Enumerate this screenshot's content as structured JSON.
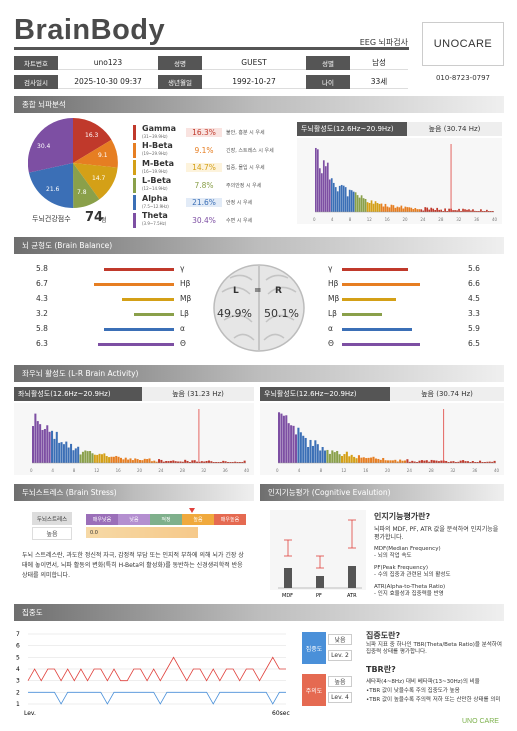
{
  "brand": "BrainBody",
  "report_label": "EEG 뇌파검사",
  "logo": "UNOCARE",
  "phone": "010-8723-0797",
  "info": {
    "row1": [
      {
        "k": "차트번호",
        "v": "uno123"
      },
      {
        "k": "성명",
        "v": "GUEST"
      },
      {
        "k": "성별",
        "v": "남성"
      }
    ],
    "row2": [
      {
        "k": "검사일시",
        "v": "2025-10-30 09:37"
      },
      {
        "k": "생년월일",
        "v": "1992-10-27"
      },
      {
        "k": "나이",
        "v": "33세"
      }
    ]
  },
  "sections": {
    "s1": "종합 뇌파분석",
    "s2": "뇌 균형도 (Brain Balance)",
    "s3": "좌우뇌 활성도 (L-R Brain Activity)",
    "s4": "두뇌스트레스 (Brain Stress)",
    "s5": "인지기능평가 (Cognitive Evalution)",
    "s6": "집중도"
  },
  "health": {
    "label": "두뇌건강점수",
    "score": "74",
    "unit": "점"
  },
  "pie_labels": [
    "16.3",
    "9.1",
    "14.7",
    "7.8",
    "21.6",
    "30.4"
  ],
  "bands": [
    {
      "name": "Gamma",
      "sub": "(31~39.9Hz)",
      "pct": "16.3%",
      "desc": "불안, 흥분 시 우세",
      "color": "#c0392b",
      "bg": "#f9e3e0"
    },
    {
      "name": "H-Beta",
      "sub": "(19~29.9Hz)",
      "pct": "9.1%",
      "desc": "긴장, 스트레스 시 우세",
      "color": "#e67e22",
      "bg": "#fff"
    },
    {
      "name": "M-Beta",
      "sub": "(16~19.9Hz)",
      "pct": "14.7%",
      "desc": "집중, 몰입 시 우세",
      "color": "#d4a017",
      "bg": "#fdf3dc"
    },
    {
      "name": "L-Beta",
      "sub": "(12~14.9Hz)",
      "pct": "7.8%",
      "desc": "주의안정 시 우세",
      "color": "#8aa04a",
      "bg": "#fff"
    },
    {
      "name": "Alpha",
      "sub": "(7.5~12.9Hz)",
      "pct": "21.6%",
      "desc": "안정 시 우세",
      "color": "#3b6fb6",
      "bg": "#e2ebf7"
    },
    {
      "name": "Theta",
      "sub": "(3.9~7.5Hz)",
      "pct": "30.4%",
      "desc": "수면 시 우세",
      "color": "#7d4fa3",
      "bg": "#fff"
    }
  ],
  "dominant_top": {
    "title": "두뇌활성도(12.6Hz~20.9Hz)",
    "value": "높음 (30.74 Hz)"
  },
  "balance": {
    "left_values": [
      "5.8",
      "6.7",
      "4.3",
      "3.2",
      "5.8",
      "6.3"
    ],
    "right_values": [
      "5.6",
      "6.6",
      "4.5",
      "3.3",
      "5.9",
      "6.5"
    ],
    "symbols": [
      "γ",
      "Hβ",
      "Mβ",
      "Lβ",
      "α",
      "Θ"
    ],
    "L": "L",
    "eq": "=",
    "R": "R",
    "left_pct": "49.9%",
    "right_pct": "50.1%"
  },
  "left_activity": {
    "title": "좌뇌활성도(12.6Hz~20.9Hz)",
    "value": "높음 (31.23 Hz)"
  },
  "right_activity": {
    "title": "우뇌활성도(12.6Hz~20.9Hz)",
    "value": "높음 (30.74 Hz)"
  },
  "stress": {
    "label": "두뇌스트레스",
    "level": "높음",
    "scale": [
      "매우낮음",
      "낮음",
      "적정",
      "높음",
      "매우높음"
    ],
    "value": "0.0",
    "description": "두뇌 스트레스란, 과도한 정신적 자극, 감정적 부담 또는 인지적 부하에 의해 뇌가 긴장 상태에 놓이면서, 뇌파 활동의 변화(특히 H-Beta의 활성화)를 동반하는 신경생리학적 반응 상태를 의미합니다."
  },
  "cognitive": {
    "title": "인지기능평가란?",
    "desc": "뇌파의 MDF, PF, ATR 값을 분석하여 인지기능을 평가합니다.",
    "items": [
      {
        "h": "MDF(Median Frequency)",
        "d": "- 뇌의 작업 속도"
      },
      {
        "h": "PF(Peak Frequency)",
        "d": "- 수의 집중과 관련된 뇌의 활성도"
      },
      {
        "h": "ATR(Alpha-to-Theta Ratio)",
        "d": "- 인지 효율성과 집중력을 반영"
      }
    ],
    "axis": [
      "MDF",
      "PF",
      "ATR"
    ]
  },
  "concentration": {
    "focus_label": "집중도",
    "focus_level": "낮음",
    "focus_lev": "Lev. 2",
    "dist_label": "주의도",
    "dist_level": "높음",
    "dist_lev": "Lev. 4",
    "q1": "집중도란?",
    "q1_desc": "뇌파 지표 중 하나인 TBR(Theta/Beta Ratio)을 분석하여 집중력 상태를 평가합니다.",
    "q2": "TBR란?",
    "q2_items": [
      "세타파(4~8Hz) 대비 베타파(13~30Hz)의 비율",
      "•TBR 값이 낮을수록 주의 집중도가 높음",
      "•TBR 값이 높을수록 주의력 저하 또는 산만한 상태를 의미"
    ],
    "xstart": "Lev.",
    "xend": "60sec",
    "yticks": [
      "7",
      "6",
      "5",
      "4",
      "3",
      "2",
      "1"
    ]
  },
  "footer_logo": "UNO CARE",
  "colors": {
    "red": "#e0413c",
    "blue": "#3b6fb6",
    "orange": "#e67e22"
  }
}
